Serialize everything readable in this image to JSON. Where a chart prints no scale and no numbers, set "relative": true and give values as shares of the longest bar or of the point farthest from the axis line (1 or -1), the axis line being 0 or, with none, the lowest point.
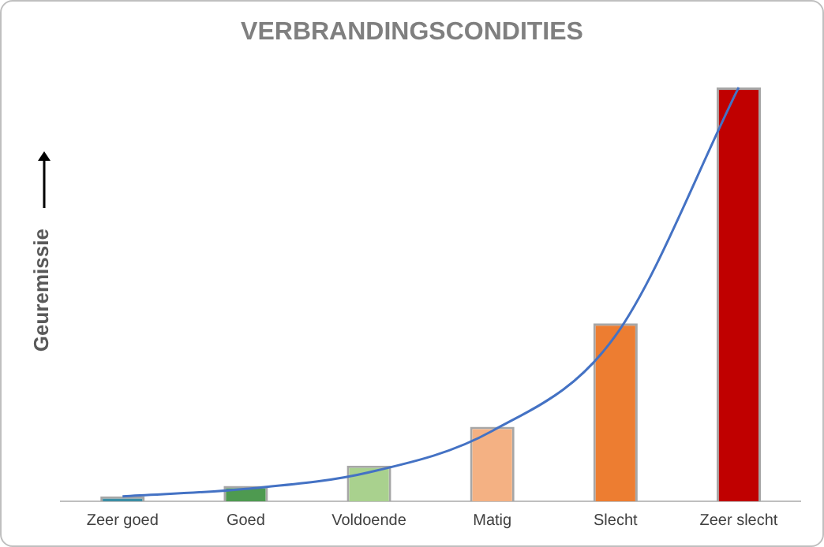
{
  "chart_data": {
    "type": "bar",
    "title": "VERBRANDINGSCONDITIES",
    "ylabel": "Geuremissie",
    "relative": true,
    "legend": false,
    "grid": false,
    "categories": [
      "Zeer goed",
      "Goed",
      "Voldoende",
      "Matig",
      "Slecht",
      "Zeer slecht"
    ],
    "series": [
      {
        "colors": [
          "#3b8ea5",
          "#4e9a50",
          "#a9d18e",
          "#f4b183",
          "#ed7d31",
          "#c00000"
        ],
        "values": [
          0.012,
          0.037,
          0.086,
          0.18,
          0.43,
          1
        ]
      },
      {
        "type": "line",
        "color": "#4472c4",
        "marker": "none",
        "values": [
          0.012,
          0.03,
          0.07,
          0.17,
          0.4,
          1
        ]
      }
    ]
  }
}
